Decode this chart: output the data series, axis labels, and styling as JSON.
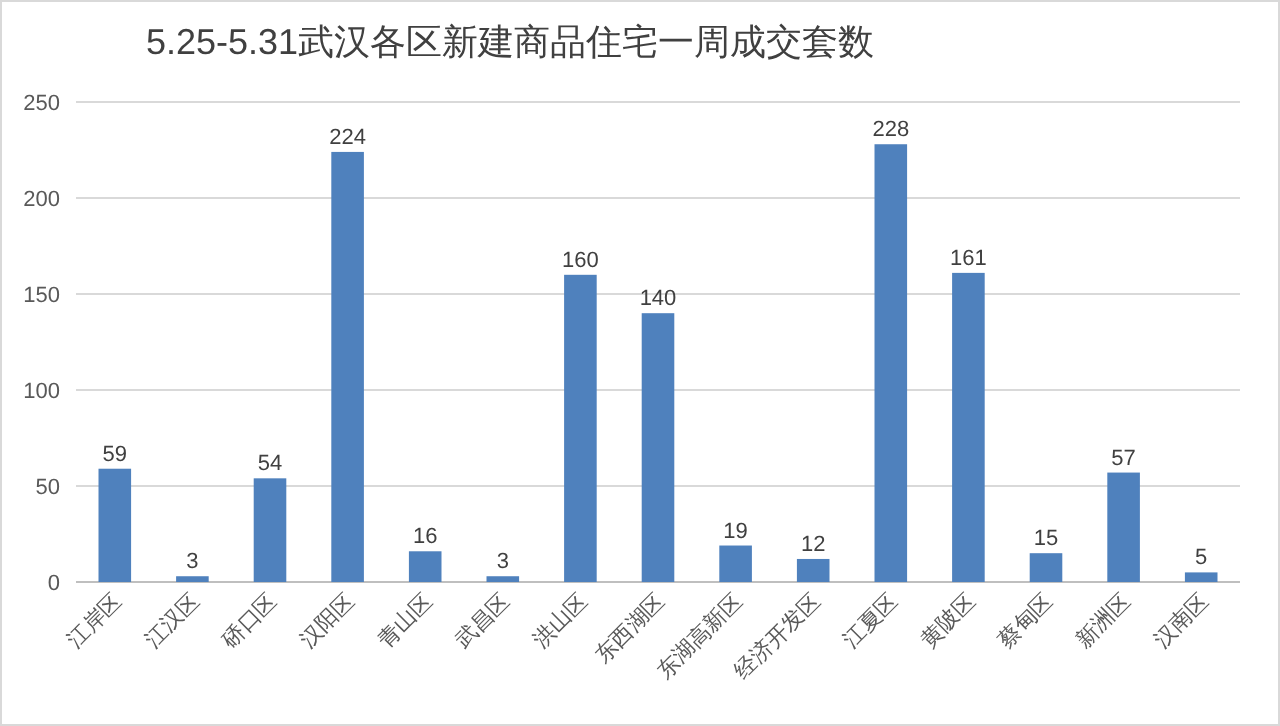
{
  "chart_data": {
    "type": "bar",
    "title": "5.25-5.31武汉各区新建商品住宅一周成交套数",
    "categories": [
      "江岸区",
      "江汉区",
      "硚口区",
      "汉阳区",
      "青山区",
      "武昌区",
      "洪山区",
      "东西湖区",
      "东湖高新区",
      "经济开发区",
      "江夏区",
      "黄陂区",
      "蔡甸区",
      "新洲区",
      "汉南区"
    ],
    "values": [
      59,
      3,
      54,
      224,
      16,
      3,
      160,
      140,
      19,
      12,
      228,
      161,
      15,
      57,
      5
    ],
    "color": "#4f81bd",
    "ylim": [
      0,
      250
    ],
    "yticks": [
      0,
      50,
      100,
      150,
      200,
      250
    ],
    "grid": "y",
    "data_labels": true
  }
}
